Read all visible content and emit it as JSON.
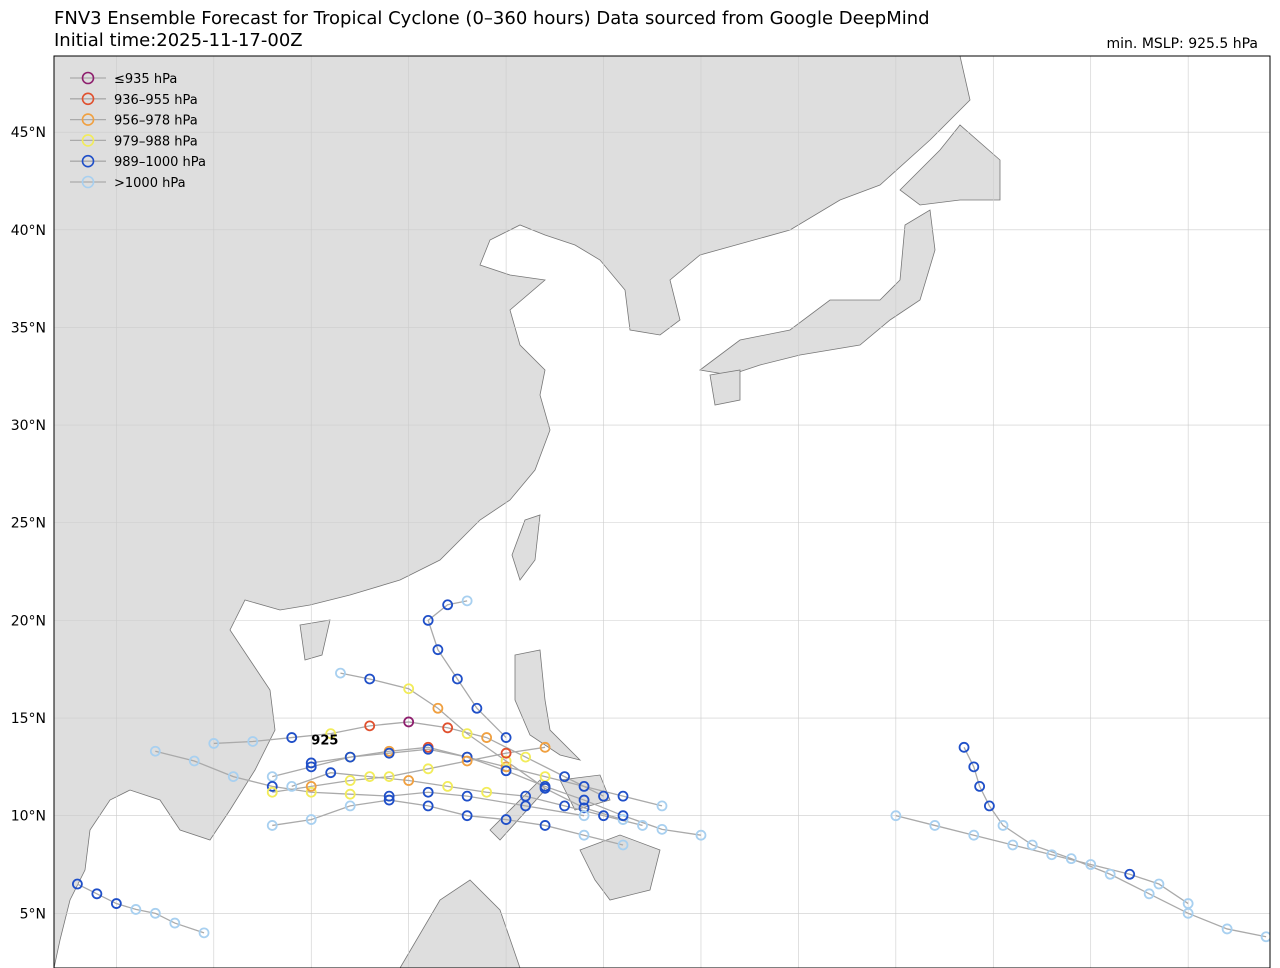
{
  "header": {
    "title": "FNV3 Ensemble Forecast for Tropical Cyclone (0–360 hours) Data sourced from Google DeepMind",
    "subtitle": "Initial time:2025-11-17-00Z",
    "stat": "min. MSLP: 925.5 hPa"
  },
  "legend": [
    {
      "label": "≤935 hPa",
      "color": "#8e1f6e"
    },
    {
      "label": "936–955 hPa",
      "color": "#e0502e"
    },
    {
      "label": "956–978 hPa",
      "color": "#f0a040"
    },
    {
      "label": "979–988 hPa",
      "color": "#f2ec5a"
    },
    {
      "label": "989–1000 hPa",
      "color": "#1f4fc8"
    },
    {
      "label": ">1000 hPa",
      "color": "#a8d0f0"
    }
  ],
  "map": {
    "lonlim": [
      96.8,
      159.2
    ],
    "latlim": [
      2.2,
      48.9
    ],
    "lat_ticks": [
      {
        "value": 5,
        "label": "5°N"
      },
      {
        "value": 10,
        "label": "10°N"
      },
      {
        "value": 15,
        "label": "15°N"
      },
      {
        "value": 20,
        "label": "20°N"
      },
      {
        "value": 25,
        "label": "25°N"
      },
      {
        "value": 30,
        "label": "30°N"
      },
      {
        "value": 35,
        "label": "35°N"
      },
      {
        "value": 40,
        "label": "40°N"
      },
      {
        "value": 45,
        "label": "45°N"
      }
    ],
    "lon_grid": [
      100,
      105,
      110,
      115,
      120,
      125,
      130,
      135,
      140,
      145,
      150,
      155
    ],
    "annotation": {
      "label": "925",
      "lon": 110.7,
      "lat": 13.9
    },
    "tracks": [
      {
        "points": [
          [
            128,
            10.5,
            5
          ],
          [
            126,
            11,
            4
          ],
          [
            124,
            11.5,
            4
          ],
          [
            122,
            12,
            3
          ],
          [
            120,
            12.5,
            2
          ],
          [
            118,
            13,
            2
          ],
          [
            116,
            13.5,
            1
          ],
          [
            114,
            13.3,
            2
          ],
          [
            112,
            13,
            3
          ],
          [
            110,
            12.5,
            4
          ],
          [
            108,
            12,
            5
          ]
        ]
      },
      {
        "points": [
          [
            127,
            9.5,
            5
          ],
          [
            125,
            10,
            4
          ],
          [
            123,
            10.5,
            4
          ],
          [
            121,
            11,
            4
          ],
          [
            119,
            11.2,
            3
          ],
          [
            117,
            11.5,
            3
          ],
          [
            115,
            11.8,
            2
          ],
          [
            113,
            12,
            3
          ],
          [
            111,
            12.2,
            4
          ],
          [
            109,
            11.5,
            5
          ]
        ]
      },
      {
        "points": [
          [
            126,
            9.8,
            5
          ],
          [
            124,
            10.4,
            4
          ],
          [
            122,
            11.4,
            4
          ],
          [
            120,
            12.8,
            3
          ],
          [
            118,
            14.2,
            3
          ],
          [
            116.5,
            15.5,
            2
          ],
          [
            115,
            16.5,
            3
          ],
          [
            113,
            17,
            4
          ],
          [
            111.5,
            17.3,
            5
          ]
        ]
      },
      {
        "points": [
          [
            125,
            11,
            4
          ],
          [
            123,
            12,
            4
          ],
          [
            121,
            13,
            3
          ],
          [
            119,
            14,
            2
          ],
          [
            117,
            14.5,
            1
          ],
          [
            115,
            14.8,
            0
          ],
          [
            113,
            14.6,
            1
          ],
          [
            111,
            14.2,
            3
          ],
          [
            109,
            14,
            4
          ],
          [
            107,
            13.8,
            5
          ],
          [
            105,
            13.7,
            5
          ]
        ]
      },
      {
        "points": [
          [
            130,
            9,
            5
          ],
          [
            128,
            9.3,
            5
          ],
          [
            126,
            10,
            4
          ],
          [
            124,
            10.8,
            4
          ],
          [
            122,
            11.5,
            4
          ],
          [
            120,
            12.3,
            4
          ],
          [
            118,
            13,
            4
          ],
          [
            116,
            13.4,
            4
          ],
          [
            114,
            13.2,
            4
          ],
          [
            112,
            13,
            4
          ],
          [
            110,
            12.7,
            4
          ]
        ]
      },
      {
        "points": [
          [
            120,
            14,
            4
          ],
          [
            118.5,
            15.5,
            4
          ],
          [
            117.5,
            17,
            4
          ],
          [
            116.5,
            18.5,
            4
          ],
          [
            116,
            20,
            4
          ],
          [
            117,
            20.8,
            4
          ],
          [
            118,
            21,
            5
          ]
        ]
      },
      {
        "points": [
          [
            124,
            10,
            5
          ],
          [
            121,
            10.5,
            4
          ],
          [
            118,
            11,
            4
          ],
          [
            116,
            11.2,
            4
          ],
          [
            114,
            11,
            4
          ],
          [
            112,
            11.1,
            3
          ],
          [
            110,
            11.2,
            3
          ],
          [
            108,
            11.5,
            4
          ],
          [
            106,
            12,
            5
          ],
          [
            104,
            12.8,
            5
          ],
          [
            102,
            13.3,
            5
          ]
        ]
      },
      {
        "points": [
          [
            143.5,
            13.5,
            4
          ],
          [
            144,
            12.5,
            4
          ],
          [
            144.3,
            11.5,
            4
          ],
          [
            144.8,
            10.5,
            4
          ],
          [
            145.5,
            9.5,
            5
          ],
          [
            147,
            8.5,
            5
          ],
          [
            149,
            7.8,
            5
          ],
          [
            151,
            7,
            5
          ],
          [
            153,
            6,
            5
          ],
          [
            155,
            5,
            5
          ],
          [
            157,
            4.2,
            5
          ],
          [
            159,
            3.8,
            5
          ]
        ]
      },
      {
        "points": [
          [
            140,
            10,
            5
          ],
          [
            142,
            9.5,
            5
          ],
          [
            144,
            9,
            5
          ],
          [
            146,
            8.5,
            5
          ],
          [
            148,
            8,
            5
          ],
          [
            150,
            7.5,
            5
          ],
          [
            152,
            7,
            4
          ],
          [
            153.5,
            6.5,
            5
          ],
          [
            155,
            5.5,
            5
          ]
        ]
      },
      {
        "points": [
          [
            98,
            6.5,
            4
          ],
          [
            99,
            6,
            4
          ],
          [
            100,
            5.5,
            4
          ],
          [
            101,
            5.2,
            5
          ],
          [
            102,
            5,
            5
          ],
          [
            103,
            4.5,
            5
          ],
          [
            104.5,
            4,
            5
          ]
        ]
      },
      {
        "points": [
          [
            122,
            13.5,
            2
          ],
          [
            120,
            13.2,
            1
          ],
          [
            118,
            12.8,
            2
          ],
          [
            116,
            12.4,
            3
          ],
          [
            114,
            12,
            3
          ],
          [
            112,
            11.8,
            3
          ],
          [
            110,
            11.5,
            2
          ],
          [
            108,
            11.2,
            3
          ]
        ]
      },
      {
        "points": [
          [
            126,
            8.5,
            5
          ],
          [
            124,
            9,
            5
          ],
          [
            122,
            9.5,
            4
          ],
          [
            120,
            9.8,
            4
          ],
          [
            118,
            10,
            4
          ],
          [
            116,
            10.5,
            4
          ],
          [
            114,
            10.8,
            4
          ],
          [
            112,
            10.5,
            5
          ],
          [
            110,
            9.8,
            5
          ],
          [
            108,
            9.5,
            5
          ]
        ]
      }
    ]
  }
}
